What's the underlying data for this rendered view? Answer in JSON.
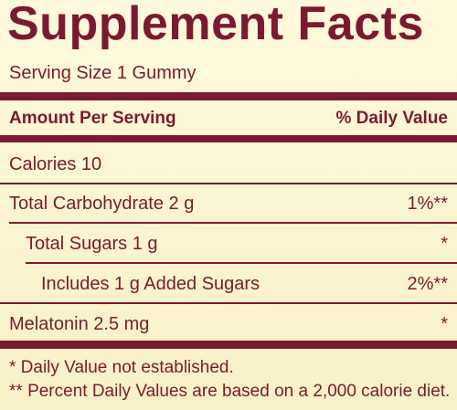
{
  "header": {
    "title": "Supplement Facts",
    "serving_size": "Serving Size 1 Gummy"
  },
  "table": {
    "columns": [
      "Amount Per Serving",
      "% Daily Value"
    ],
    "rows": [
      [
        "Calories 10"
      ],
      [
        "Total Carbohydrate 2 g",
        "1%**"
      ],
      [
        "Total Sugars 1 g",
        "*"
      ],
      [
        "Includes 1 g Added Sugars",
        "2%**"
      ],
      [
        "Melatonin 2.5 mg",
        "*"
      ]
    ]
  },
  "footnotes": [
    "* Daily Value not established.",
    "** Percent Daily Values are based on a 2,000 calorie diet."
  ]
}
